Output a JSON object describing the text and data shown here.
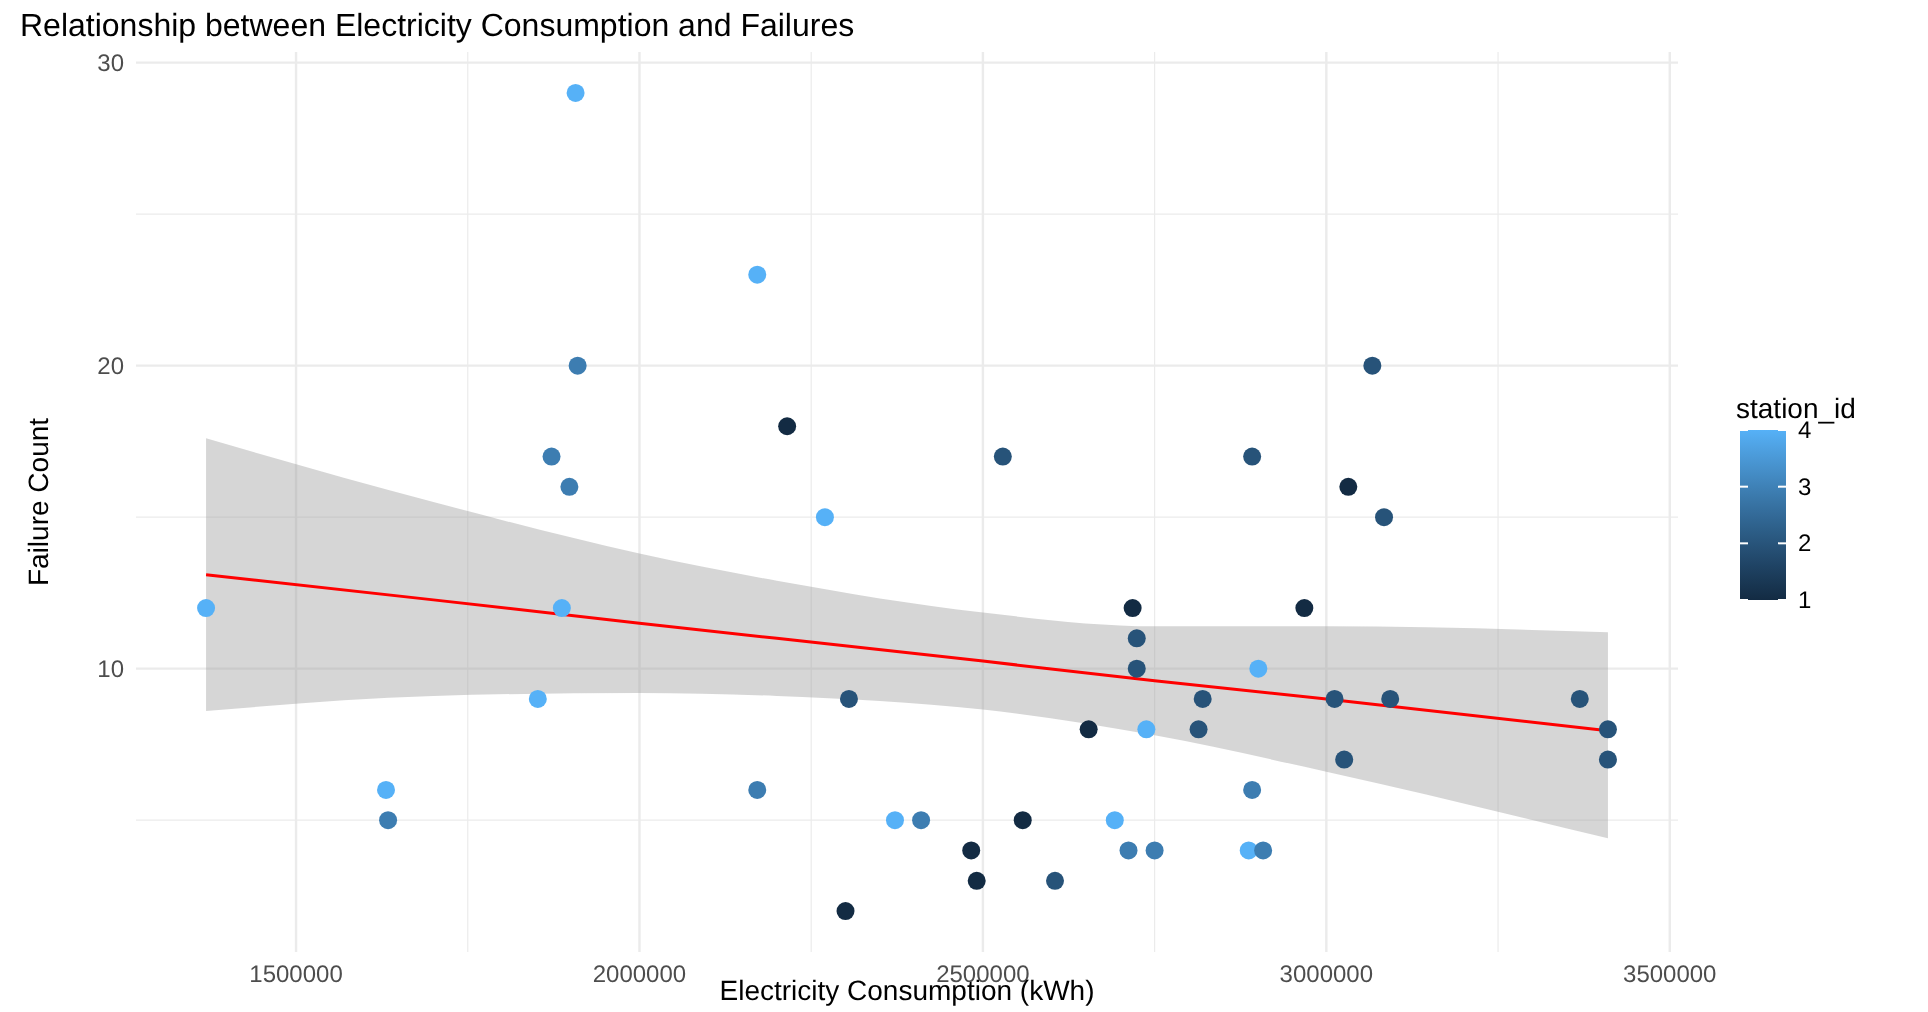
{
  "chart_data": {
    "type": "scatter",
    "title": "Relationship between Electricity Consumption and Failures",
    "xlabel": "Electricity Consumption (kWh)",
    "ylabel": "Failure Count",
    "clabel": "station_id",
    "xlim": [
      1267000,
      3512000
    ],
    "ylim": [
      0.65,
      30.35
    ],
    "xticks": [
      {
        "value": 1500000,
        "label": "1500000"
      },
      {
        "value": 1750000,
        "label": null
      },
      {
        "value": 2000000,
        "label": "2000000"
      },
      {
        "value": 2250000,
        "label": null
      },
      {
        "value": 2500000,
        "label": "2500000"
      },
      {
        "value": 2750000,
        "label": null
      },
      {
        "value": 3000000,
        "label": "3000000"
      },
      {
        "value": 3250000,
        "label": null
      },
      {
        "value": 3500000,
        "label": "3500000"
      }
    ],
    "yticks": [
      {
        "value": 5,
        "label": null
      },
      10,
      {
        "value": 15,
        "label": null
      },
      20,
      {
        "value": 25,
        "label": null
      },
      30
    ],
    "clim": [
      1,
      4
    ],
    "cticks": [
      1,
      2,
      3,
      4
    ],
    "grid": true,
    "series": [
      {
        "marker": "circle",
        "x": [
          1369000,
          1907000,
          2171500,
          1910000,
          2215000,
          1872000,
          1898000,
          2270000,
          2529000,
          3067000,
          2892000,
          3032000,
          3084000,
          2718000,
          2968000,
          2724000,
          2724000,
          2901000,
          1887000,
          1852000,
          2305000,
          2820000,
          3012000,
          3093000,
          3369000,
          2654000,
          2738000,
          2814000,
          3410000,
          3026000,
          3410000,
          1631000,
          2171500,
          2892000,
          1634000,
          2372000,
          2410000,
          2558000,
          2692000,
          2483000,
          2712000,
          2750000,
          2887000,
          2908000,
          2491000,
          2605000,
          2300000
        ],
        "values": [
          12,
          29,
          23,
          20,
          18,
          17,
          16,
          15,
          17,
          20,
          17,
          16,
          15,
          12,
          12,
          11,
          10,
          10,
          12,
          9,
          9,
          9,
          9,
          9,
          9,
          8,
          8,
          8,
          8,
          7,
          7,
          6,
          6,
          6,
          5,
          5,
          5,
          5,
          5,
          4,
          4,
          4,
          4,
          4,
          3,
          3,
          2
        ],
        "colors": [
          "#56b1f7",
          "#56b1f7",
          "#56b1f7",
          "#3d7db1",
          "#132b43",
          "#3d7db1",
          "#3d7db1",
          "#56b1f7",
          "#275379",
          "#275379",
          "#275379",
          "#132b43",
          "#275379",
          "#132b43",
          "#132b43",
          "#275379",
          "#275379",
          "#56b1f7",
          "#56b1f7",
          "#56b1f7",
          "#275379",
          "#275379",
          "#275379",
          "#275379",
          "#275379",
          "#132b43",
          "#56b1f7",
          "#275379",
          "#275379",
          "#275379",
          "#275379",
          "#56b1f7",
          "#3d7db1",
          "#3d7db1",
          "#3d7db1",
          "#56b1f7",
          "#3d7db1",
          "#132b43",
          "#56b1f7",
          "#132b43",
          "#3d7db1",
          "#3d7db1",
          "#56b1f7",
          "#3d7db1",
          "#132b43",
          "#275379",
          "#132b43"
        ]
      },
      {
        "type": "line",
        "color": "#ff0000",
        "x": [
          1369000,
          1700000,
          2000000,
          2200000,
          2500000,
          2750000,
          3000000,
          3410000
        ],
        "values": [
          13.1,
          12.27,
          11.5,
          11.0,
          10.25,
          9.6,
          9.0,
          7.95
        ],
        "lower": [
          8.6,
          9.1,
          9.2,
          9.1,
          8.65,
          7.8,
          6.6,
          4.4
        ],
        "upper": [
          17.6,
          15.5,
          13.8,
          12.9,
          11.85,
          11.4,
          11.4,
          11.2
        ]
      }
    ]
  }
}
